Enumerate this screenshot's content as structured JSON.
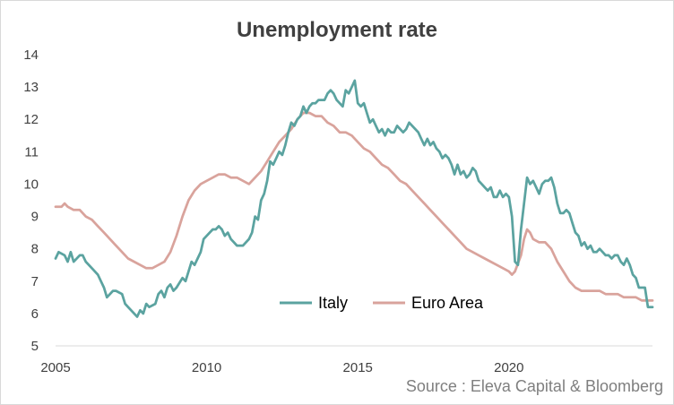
{
  "source": "Source : Eleva Capital & Bloomberg",
  "chart_data": {
    "type": "line",
    "title": "Unemployment rate",
    "xlabel": "",
    "ylabel": "",
    "xlim": [
      2005,
      2024.75
    ],
    "ylim": [
      5,
      14
    ],
    "yticks": [
      5,
      6,
      7,
      8,
      9,
      10,
      11,
      12,
      13,
      14
    ],
    "xticks": [
      2005,
      2010,
      2015,
      2020
    ],
    "grid": false,
    "legend": "bottom-center",
    "series": [
      {
        "name": "Italy",
        "color": "#5ba3a0",
        "points": [
          [
            2005.0,
            7.7
          ],
          [
            2005.1,
            7.9
          ],
          [
            2005.3,
            7.8
          ],
          [
            2005.4,
            7.6
          ],
          [
            2005.5,
            7.9
          ],
          [
            2005.6,
            7.6
          ],
          [
            2005.8,
            7.8
          ],
          [
            2005.9,
            7.8
          ],
          [
            2006.0,
            7.6
          ],
          [
            2006.2,
            7.4
          ],
          [
            2006.4,
            7.2
          ],
          [
            2006.5,
            7.0
          ],
          [
            2006.6,
            6.8
          ],
          [
            2006.7,
            6.5
          ],
          [
            2006.8,
            6.6
          ],
          [
            2006.9,
            6.7
          ],
          [
            2007.0,
            6.7
          ],
          [
            2007.2,
            6.6
          ],
          [
            2007.3,
            6.3
          ],
          [
            2007.4,
            6.2
          ],
          [
            2007.5,
            6.1
          ],
          [
            2007.6,
            6.0
          ],
          [
            2007.7,
            5.9
          ],
          [
            2007.8,
            6.1
          ],
          [
            2007.9,
            6.0
          ],
          [
            2008.0,
            6.3
          ],
          [
            2008.1,
            6.2
          ],
          [
            2008.3,
            6.3
          ],
          [
            2008.4,
            6.6
          ],
          [
            2008.5,
            6.7
          ],
          [
            2008.6,
            6.5
          ],
          [
            2008.7,
            6.8
          ],
          [
            2008.8,
            6.9
          ],
          [
            2008.9,
            6.7
          ],
          [
            2009.0,
            6.8
          ],
          [
            2009.2,
            7.1
          ],
          [
            2009.3,
            7.0
          ],
          [
            2009.4,
            7.3
          ],
          [
            2009.5,
            7.6
          ],
          [
            2009.6,
            7.5
          ],
          [
            2009.7,
            7.7
          ],
          [
            2009.8,
            7.9
          ],
          [
            2009.9,
            8.3
          ],
          [
            2010.0,
            8.4
          ],
          [
            2010.1,
            8.5
          ],
          [
            2010.2,
            8.6
          ],
          [
            2010.3,
            8.6
          ],
          [
            2010.4,
            8.7
          ],
          [
            2010.5,
            8.6
          ],
          [
            2010.6,
            8.4
          ],
          [
            2010.7,
            8.5
          ],
          [
            2010.8,
            8.3
          ],
          [
            2010.9,
            8.2
          ],
          [
            2011.0,
            8.1
          ],
          [
            2011.2,
            8.1
          ],
          [
            2011.4,
            8.3
          ],
          [
            2011.5,
            8.5
          ],
          [
            2011.6,
            9.0
          ],
          [
            2011.7,
            8.9
          ],
          [
            2011.8,
            9.5
          ],
          [
            2011.9,
            9.7
          ],
          [
            2012.0,
            10.1
          ],
          [
            2012.1,
            10.7
          ],
          [
            2012.2,
            10.6
          ],
          [
            2012.3,
            10.8
          ],
          [
            2012.4,
            11.0
          ],
          [
            2012.5,
            10.9
          ],
          [
            2012.6,
            11.2
          ],
          [
            2012.7,
            11.6
          ],
          [
            2012.8,
            11.9
          ],
          [
            2012.9,
            11.8
          ],
          [
            2013.0,
            12.0
          ],
          [
            2013.1,
            12.1
          ],
          [
            2013.2,
            12.4
          ],
          [
            2013.3,
            12.2
          ],
          [
            2013.4,
            12.4
          ],
          [
            2013.5,
            12.5
          ],
          [
            2013.6,
            12.5
          ],
          [
            2013.7,
            12.6
          ],
          [
            2013.9,
            12.6
          ],
          [
            2014.0,
            12.8
          ],
          [
            2014.1,
            12.9
          ],
          [
            2014.2,
            12.8
          ],
          [
            2014.3,
            12.6
          ],
          [
            2014.4,
            12.5
          ],
          [
            2014.5,
            12.4
          ],
          [
            2014.6,
            12.9
          ],
          [
            2014.7,
            12.8
          ],
          [
            2014.8,
            13.0
          ],
          [
            2014.9,
            13.2
          ],
          [
            2015.0,
            12.5
          ],
          [
            2015.1,
            12.4
          ],
          [
            2015.2,
            12.5
          ],
          [
            2015.3,
            12.2
          ],
          [
            2015.4,
            11.9
          ],
          [
            2015.5,
            12.0
          ],
          [
            2015.6,
            11.8
          ],
          [
            2015.7,
            11.6
          ],
          [
            2015.8,
            11.7
          ],
          [
            2015.9,
            11.5
          ],
          [
            2016.0,
            11.7
          ],
          [
            2016.1,
            11.6
          ],
          [
            2016.2,
            11.6
          ],
          [
            2016.3,
            11.8
          ],
          [
            2016.4,
            11.7
          ],
          [
            2016.5,
            11.6
          ],
          [
            2016.6,
            11.7
          ],
          [
            2016.7,
            11.9
          ],
          [
            2016.8,
            11.8
          ],
          [
            2016.9,
            11.7
          ],
          [
            2017.0,
            11.6
          ],
          [
            2017.1,
            11.4
          ],
          [
            2017.2,
            11.2
          ],
          [
            2017.3,
            11.4
          ],
          [
            2017.4,
            11.2
          ],
          [
            2017.5,
            11.3
          ],
          [
            2017.6,
            11.1
          ],
          [
            2017.7,
            11.0
          ],
          [
            2017.8,
            10.8
          ],
          [
            2017.9,
            10.9
          ],
          [
            2018.0,
            10.8
          ],
          [
            2018.1,
            10.6
          ],
          [
            2018.2,
            10.3
          ],
          [
            2018.3,
            10.6
          ],
          [
            2018.4,
            10.3
          ],
          [
            2018.5,
            10.4
          ],
          [
            2018.6,
            10.2
          ],
          [
            2018.7,
            10.3
          ],
          [
            2018.8,
            10.5
          ],
          [
            2018.9,
            10.4
          ],
          [
            2019.0,
            10.1
          ],
          [
            2019.1,
            10.0
          ],
          [
            2019.2,
            9.9
          ],
          [
            2019.3,
            9.8
          ],
          [
            2019.4,
            9.9
          ],
          [
            2019.5,
            9.6
          ],
          [
            2019.6,
            9.6
          ],
          [
            2019.7,
            9.8
          ],
          [
            2019.8,
            9.6
          ],
          [
            2019.9,
            9.7
          ],
          [
            2020.0,
            9.6
          ],
          [
            2020.1,
            9.0
          ],
          [
            2020.2,
            7.6
          ],
          [
            2020.3,
            7.5
          ],
          [
            2020.4,
            8.6
          ],
          [
            2020.5,
            9.4
          ],
          [
            2020.6,
            10.2
          ],
          [
            2020.7,
            10.0
          ],
          [
            2020.8,
            10.1
          ],
          [
            2020.9,
            9.9
          ],
          [
            2021.0,
            9.7
          ],
          [
            2021.1,
            10.0
          ],
          [
            2021.2,
            10.1
          ],
          [
            2021.3,
            10.1
          ],
          [
            2021.4,
            10.2
          ],
          [
            2021.5,
            9.9
          ],
          [
            2021.6,
            9.4
          ],
          [
            2021.7,
            9.1
          ],
          [
            2021.8,
            9.1
          ],
          [
            2021.9,
            9.2
          ],
          [
            2022.0,
            9.1
          ],
          [
            2022.1,
            8.8
          ],
          [
            2022.2,
            8.5
          ],
          [
            2022.3,
            8.4
          ],
          [
            2022.4,
            8.1
          ],
          [
            2022.5,
            8.2
          ],
          [
            2022.6,
            8.0
          ],
          [
            2022.7,
            8.1
          ],
          [
            2022.8,
            7.9
          ],
          [
            2022.9,
            7.9
          ],
          [
            2023.0,
            8.0
          ],
          [
            2023.1,
            7.9
          ],
          [
            2023.2,
            7.8
          ],
          [
            2023.3,
            7.8
          ],
          [
            2023.4,
            7.7
          ],
          [
            2023.5,
            7.8
          ],
          [
            2023.6,
            7.8
          ],
          [
            2023.7,
            7.6
          ],
          [
            2023.8,
            7.5
          ],
          [
            2023.9,
            7.7
          ],
          [
            2024.0,
            7.5
          ],
          [
            2024.1,
            7.2
          ],
          [
            2024.2,
            7.1
          ],
          [
            2024.3,
            6.8
          ],
          [
            2024.4,
            6.8
          ],
          [
            2024.5,
            6.8
          ],
          [
            2024.6,
            6.2
          ],
          [
            2024.75,
            6.2
          ]
        ]
      },
      {
        "name": "Euro Area",
        "color": "#d9a39c",
        "points": [
          [
            2005.0,
            9.3
          ],
          [
            2005.2,
            9.3
          ],
          [
            2005.3,
            9.4
          ],
          [
            2005.4,
            9.3
          ],
          [
            2005.6,
            9.2
          ],
          [
            2005.8,
            9.2
          ],
          [
            2006.0,
            9.0
          ],
          [
            2006.2,
            8.9
          ],
          [
            2006.4,
            8.7
          ],
          [
            2006.6,
            8.5
          ],
          [
            2006.8,
            8.3
          ],
          [
            2007.0,
            8.1
          ],
          [
            2007.2,
            7.9
          ],
          [
            2007.4,
            7.7
          ],
          [
            2007.6,
            7.6
          ],
          [
            2007.8,
            7.5
          ],
          [
            2008.0,
            7.4
          ],
          [
            2008.2,
            7.4
          ],
          [
            2008.4,
            7.5
          ],
          [
            2008.6,
            7.6
          ],
          [
            2008.8,
            7.9
          ],
          [
            2009.0,
            8.4
          ],
          [
            2009.2,
            9.0
          ],
          [
            2009.4,
            9.5
          ],
          [
            2009.6,
            9.8
          ],
          [
            2009.8,
            10.0
          ],
          [
            2010.0,
            10.1
          ],
          [
            2010.2,
            10.2
          ],
          [
            2010.4,
            10.3
          ],
          [
            2010.6,
            10.3
          ],
          [
            2010.8,
            10.2
          ],
          [
            2011.0,
            10.2
          ],
          [
            2011.2,
            10.1
          ],
          [
            2011.4,
            10.0
          ],
          [
            2011.6,
            10.2
          ],
          [
            2011.8,
            10.4
          ],
          [
            2012.0,
            10.7
          ],
          [
            2012.2,
            11.0
          ],
          [
            2012.4,
            11.3
          ],
          [
            2012.6,
            11.5
          ],
          [
            2012.8,
            11.7
          ],
          [
            2013.0,
            12.0
          ],
          [
            2013.2,
            12.2
          ],
          [
            2013.4,
            12.2
          ],
          [
            2013.6,
            12.1
          ],
          [
            2013.8,
            12.1
          ],
          [
            2014.0,
            11.9
          ],
          [
            2014.2,
            11.8
          ],
          [
            2014.4,
            11.6
          ],
          [
            2014.6,
            11.6
          ],
          [
            2014.8,
            11.5
          ],
          [
            2015.0,
            11.3
          ],
          [
            2015.2,
            11.1
          ],
          [
            2015.4,
            11.0
          ],
          [
            2015.6,
            10.8
          ],
          [
            2015.8,
            10.6
          ],
          [
            2016.0,
            10.5
          ],
          [
            2016.2,
            10.3
          ],
          [
            2016.4,
            10.1
          ],
          [
            2016.6,
            10.0
          ],
          [
            2016.8,
            9.8
          ],
          [
            2017.0,
            9.6
          ],
          [
            2017.2,
            9.4
          ],
          [
            2017.4,
            9.2
          ],
          [
            2017.6,
            9.0
          ],
          [
            2017.8,
            8.8
          ],
          [
            2018.0,
            8.6
          ],
          [
            2018.2,
            8.4
          ],
          [
            2018.4,
            8.2
          ],
          [
            2018.6,
            8.0
          ],
          [
            2018.8,
            7.9
          ],
          [
            2019.0,
            7.8
          ],
          [
            2019.2,
            7.7
          ],
          [
            2019.4,
            7.6
          ],
          [
            2019.6,
            7.5
          ],
          [
            2019.8,
            7.4
          ],
          [
            2020.0,
            7.3
          ],
          [
            2020.1,
            7.2
          ],
          [
            2020.2,
            7.3
          ],
          [
            2020.4,
            7.8
          ],
          [
            2020.5,
            8.3
          ],
          [
            2020.6,
            8.6
          ],
          [
            2020.7,
            8.5
          ],
          [
            2020.8,
            8.3
          ],
          [
            2021.0,
            8.2
          ],
          [
            2021.2,
            8.2
          ],
          [
            2021.4,
            8.0
          ],
          [
            2021.6,
            7.6
          ],
          [
            2021.8,
            7.3
          ],
          [
            2022.0,
            7.0
          ],
          [
            2022.2,
            6.8
          ],
          [
            2022.4,
            6.7
          ],
          [
            2022.6,
            6.7
          ],
          [
            2022.8,
            6.7
          ],
          [
            2023.0,
            6.7
          ],
          [
            2023.2,
            6.6
          ],
          [
            2023.4,
            6.6
          ],
          [
            2023.6,
            6.6
          ],
          [
            2023.8,
            6.5
          ],
          [
            2024.0,
            6.5
          ],
          [
            2024.2,
            6.5
          ],
          [
            2024.4,
            6.4
          ],
          [
            2024.6,
            6.4
          ],
          [
            2024.75,
            6.4
          ]
        ]
      }
    ]
  }
}
